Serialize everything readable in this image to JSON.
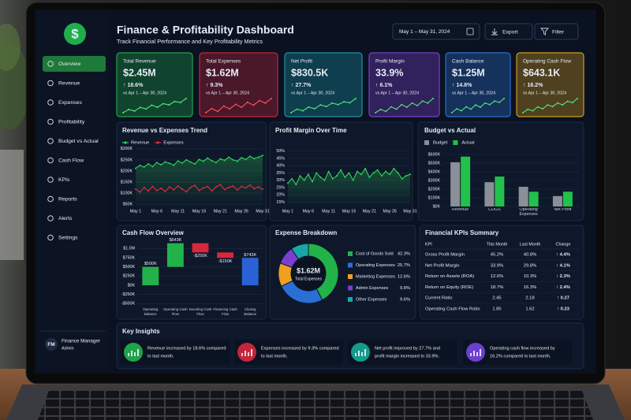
{
  "sidebar": {
    "logo": "$",
    "menu": [
      "Overview",
      "Revenue",
      "Expenses",
      "Profitability",
      "Budget vs Actual",
      "Cash Flow",
      "KPIs",
      "Reports",
      "Alerts",
      "Settings"
    ],
    "user": {
      "initials": "FM",
      "name": "Finance Manager",
      "role": "Admin"
    }
  },
  "header": {
    "title": "Finance & Profitability Dashboard",
    "subtitle": "Track Financial Performance and Key Profitability Metrics",
    "date_range": "May 1 – May 31, 2024",
    "buttons": [
      "Export",
      "Filter"
    ]
  },
  "kpis": [
    {
      "label": "Total Revenue",
      "value": "$2.45M",
      "change": "↑ 18.6%",
      "period": "vs Apr 1 – Apr 30, 2024",
      "color": "#1fa34a",
      "line_color": "#52e27a",
      "sparkline": [
        3,
        4.2,
        3.6,
        5,
        4.4,
        5.8,
        5,
        6.4,
        5.9,
        7.2,
        6.8,
        8.3
      ]
    },
    {
      "label": "Total Expenses",
      "value": "$1.62M",
      "change": "↑ 9.3%",
      "period": "vs Apr 1 – Apr 30, 2024",
      "color": "#c4253b",
      "line_color": "#ff4d63",
      "sparkline": [
        4,
        5,
        4.3,
        5.6,
        4.9,
        6,
        5.3,
        6.5,
        5.8,
        6.9,
        6.3,
        7.4
      ]
    },
    {
      "label": "Net Profit",
      "value": "$830.5K",
      "change": "↑ 27.7%",
      "period": "vs Apr 1 – Apr 30, 2024",
      "color": "#1b93a6",
      "line_color": "#52e27a",
      "sparkline": [
        2.5,
        3.8,
        3.2,
        4.6,
        4,
        5.4,
        4.8,
        6.1,
        5.5,
        6.6,
        6.2,
        7.8
      ]
    },
    {
      "label": "Profit Margin",
      "value": "33.9%",
      "change": "↑ 6.1%",
      "period": "vs Apr 1 – Apr 30, 2024",
      "color": "#7b3fd0",
      "line_color": "#52e27a",
      "sparkline": [
        3,
        4,
        3.4,
        4.8,
        4.1,
        5.5,
        4.7,
        6,
        5.2,
        6.6,
        6,
        7.4
      ]
    },
    {
      "label": "Cash Balance",
      "value": "$1.25M",
      "change": "↑ 14.8%",
      "period": "vs Apr 1 – Apr 30, 2024",
      "color": "#2a6fd0",
      "line_color": "#52e27a",
      "sparkline": [
        3.2,
        4.4,
        3.8,
        5,
        4.3,
        5.6,
        4.9,
        6.2,
        5.7,
        6.8,
        6.4,
        7.6
      ]
    },
    {
      "label": "Operating Cash Flow",
      "value": "$643.1K",
      "change": "↑ 16.2%",
      "period": "vs Apr 1 – Apr 30, 2024",
      "color": "#d19a1f",
      "line_color": "#52e27a",
      "sparkline": [
        2.8,
        4,
        3.5,
        4.9,
        4.2,
        5.6,
        5,
        6.3,
        5.6,
        6.9,
        6.4,
        7.9
      ]
    }
  ],
  "chart_data": [
    {
      "type": "line",
      "title": "Revenue vs Expenses Trend",
      "categories": [
        "May 1",
        null,
        null,
        null,
        null,
        "May 6",
        null,
        null,
        null,
        null,
        "May 11",
        null,
        null,
        null,
        null,
        "May 16",
        null,
        null,
        null,
        null,
        "May 21",
        null,
        null,
        null,
        null,
        "May 26",
        null,
        null,
        null,
        null,
        "May 31"
      ],
      "series": [
        {
          "name": "Revenue",
          "color": "#2fd35a",
          "values": [
            212,
            225,
            218,
            232,
            220,
            238,
            228,
            241,
            235,
            226,
            245,
            236,
            250,
            240,
            232,
            252,
            244,
            258,
            246,
            238,
            255,
            248,
            262,
            250,
            244,
            260,
            252,
            266,
            256,
            262,
            270
          ]
        },
        {
          "name": "Expenses",
          "color": "#e8283f",
          "values": [
            118,
            105,
            125,
            110,
            130,
            112,
            122,
            108,
            128,
            115,
            132,
            118,
            106,
            126,
            135,
            112,
            124,
            130,
            110,
            128,
            138,
            116,
            126,
            132,
            114,
            130,
            124,
            136,
            120,
            128,
            118
          ]
        }
      ],
      "ylim": [
        40,
        310
      ],
      "yticks": [
        {
          "value": 50,
          "label": "$50K"
        },
        {
          "value": 100,
          "label": "$100K"
        },
        {
          "value": 150,
          "label": "$150K"
        },
        {
          "value": 200,
          "label": "$200K"
        },
        {
          "value": 250,
          "label": "$250K"
        },
        {
          "value": 300,
          "label": "$300K"
        }
      ],
      "grid": true,
      "legend": "top-left"
    },
    {
      "type": "line",
      "title": "Profit Margin Over Time",
      "categories": [
        "May 1",
        null,
        null,
        null,
        null,
        "May 6",
        null,
        null,
        null,
        null,
        "May 11",
        null,
        null,
        null,
        null,
        "May 16",
        null,
        null,
        null,
        null,
        "May 21",
        null,
        null,
        null,
        null,
        "May 26",
        null,
        null,
        null,
        null,
        "May 31"
      ],
      "series": [
        {
          "color": "#2fd35a",
          "values": [
            28,
            31,
            27,
            33,
            30,
            34,
            29,
            35,
            32,
            30,
            36,
            31,
            33,
            37,
            32,
            35,
            30,
            36,
            34,
            38,
            32,
            35,
            37,
            33,
            36,
            34,
            38,
            35,
            31,
            33,
            34
          ]
        }
      ],
      "ylim": [
        12,
        52
      ],
      "yticks": [
        {
          "value": 15,
          "label": "15%"
        },
        {
          "value": 20,
          "label": "20%"
        },
        {
          "value": 25,
          "label": "25%"
        },
        {
          "value": 30,
          "label": "30%"
        },
        {
          "value": 35,
          "label": "35%"
        },
        {
          "value": 40,
          "label": "40%"
        },
        {
          "value": 45,
          "label": "45%"
        },
        {
          "value": 50,
          "label": "50%"
        }
      ],
      "grid": true
    },
    {
      "type": "bar",
      "title": "Budget vs Actual",
      "categories": [
        "Revenue",
        "COGS",
        "Operating Expenses",
        "Net Profit"
      ],
      "series": [
        {
          "name": "Budget",
          "color": "#8a8f98",
          "values": [
            510,
            280,
            227,
            120
          ]
        },
        {
          "name": "Actual",
          "color": "#22c14a",
          "values": [
            575,
            345,
            170,
            170
          ]
        }
      ],
      "ylim": [
        0,
        600
      ],
      "yticks": [
        {
          "value": 0,
          "label": "$0K"
        },
        {
          "value": 100,
          "label": "$100K"
        },
        {
          "value": 200,
          "label": "$200K"
        },
        {
          "value": 300,
          "label": "$300K"
        },
        {
          "value": 400,
          "label": "$400K"
        },
        {
          "value": 500,
          "label": "$500K"
        },
        {
          "value": 600,
          "label": "$600K"
        }
      ],
      "grid": true,
      "legend": "top-left"
    },
    {
      "type": "waterfall",
      "title": "Cash Flow Overview",
      "categories": [
        "Operating Balance",
        "Operating Cash Flow",
        "Investing Cash Flow",
        "Financing Cash Flow",
        "Closing Balance"
      ],
      "values": [
        500,
        643,
        -250,
        -150,
        743
      ],
      "value_labels": [
        "$500K",
        "$643K",
        "-$250K",
        "-$150K",
        "$743K"
      ],
      "measure": [
        "absolute",
        "relative",
        "relative",
        "relative",
        "total"
      ],
      "colors": [
        "#22b24a",
        "#22b24a",
        "#d8263c",
        "#d8263c",
        "#2a62d6"
      ],
      "ylim": [
        -600,
        1200
      ],
      "yticks": [
        {
          "value": -500,
          "label": "-$500K"
        },
        {
          "value": -250,
          "label": "-$250K"
        },
        {
          "value": 0,
          "label": "$0K"
        },
        {
          "value": 250,
          "label": "$250K"
        },
        {
          "value": 500,
          "label": "$500K"
        },
        {
          "value": 750,
          "label": "$750K"
        },
        {
          "value": 1000,
          "label": "$1.0M"
        }
      ],
      "grid": true
    },
    {
      "type": "donut",
      "title": "Expense Breakdown",
      "center_value": "$1.62M",
      "center_label": "Total Expenses",
      "categories": [
        "Cost of Goods Sold",
        "Operating Expenses",
        "Marketing Expenses",
        "Admin Expenses",
        "Other Expenses"
      ],
      "values": [
        42.3,
        25.7,
        12.6,
        9.8,
        9.6
      ],
      "value_labels": [
        "42.3%",
        "25.7%",
        "12.6%",
        "9.8%",
        "9.6%"
      ],
      "colors": [
        "#22b24a",
        "#2a6fd6",
        "#f0a020",
        "#7a3fd0",
        "#17a7a8"
      ]
    }
  ],
  "kpi_table": {
    "title": "Financial KPIs Summary",
    "columns": [
      "KPI",
      "This Month",
      "Last Month",
      "Change"
    ],
    "rows": [
      [
        "Gross Profit Margin",
        "45.2%",
        "40.8%",
        "↑ 4.4%"
      ],
      [
        "Net Profit Margin",
        "33.9%",
        "29.8%",
        "↑ 4.1%"
      ],
      [
        "Return on Assets (ROA)",
        "12.6%",
        "10.3%",
        "↑ 2.3%"
      ],
      [
        "Return on Equity (ROE)",
        "18.7%",
        "16.3%",
        "↑ 2.4%"
      ],
      [
        "Current Ratio",
        "2.45",
        "2.18",
        "↑ 0.27"
      ],
      [
        "Operating Cash Flow Ratio",
        "1.85",
        "1.62",
        "↑ 0.23"
      ]
    ]
  },
  "insights": {
    "title": "Key Insights",
    "items": [
      {
        "color": "#1fa34a",
        "lines": [
          "Revenue increased by 18.6% compared",
          "to last month."
        ]
      },
      {
        "color": "#c4253b",
        "lines": [
          "Expenses increased by 9.3% compared",
          "to last month."
        ]
      },
      {
        "color": "#139a8c",
        "lines": [
          "Net profit improved by 27.7% and",
          "profit margin increased to 33.9%."
        ]
      },
      {
        "color": "#6b3fcf",
        "lines": [
          "Operating cash flow increased by",
          "16.2% compared to last month."
        ]
      }
    ]
  }
}
